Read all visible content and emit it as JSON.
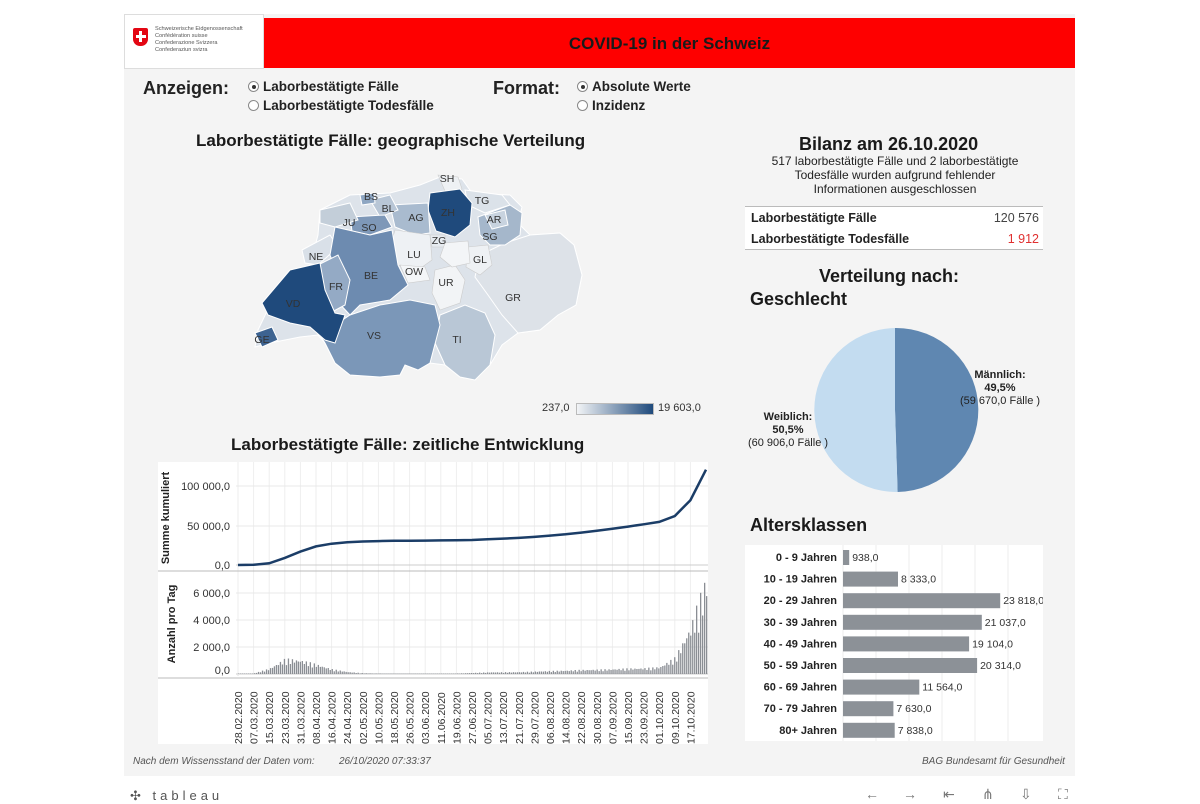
{
  "header": {
    "logo_lines": [
      "Schweizerische Eidgenossenschaft",
      "Confédération suisse",
      "Confederazione Svizzera",
      "Confederaziun svizra"
    ],
    "title": "COVID-19 in der Schweiz"
  },
  "controls": {
    "anzeigen_label": "Anzeigen:",
    "anzeigen_options": [
      {
        "label": "Laborbestätigte Fälle",
        "selected": true
      },
      {
        "label": "Laborbestätigte Todesfälle",
        "selected": false
      }
    ],
    "format_label": "Format:",
    "format_options": [
      {
        "label": "Absolute Werte",
        "selected": true
      },
      {
        "label": "Inzidenz",
        "selected": false
      }
    ]
  },
  "map": {
    "title": "Laborbestätigte Fälle: geographische Verteilung",
    "legend_min": "237,0",
    "legend_max": "19 603,0",
    "cantons": [
      "SH",
      "BS",
      "BL",
      "AG",
      "ZH",
      "TG",
      "JU",
      "SO",
      "AR",
      "SG",
      "ZG",
      "NE",
      "LU",
      "OW",
      "GL",
      "FR",
      "BE",
      "UR",
      "VD",
      "GR",
      "GE",
      "VS",
      "TI"
    ]
  },
  "bilanz": {
    "title": "Bilanz am 26.10.2020",
    "note_lines": [
      "517 laborbestätigte Fälle und 2 laborbestätigte",
      "Todesfälle wurden aufgrund fehlender",
      "Informationen ausgeschlossen"
    ],
    "rows": [
      {
        "label": "Laborbestätigte Fälle",
        "value": "120 576"
      },
      {
        "label": "Laborbestätigte Todesfälle",
        "value": "1 912"
      }
    ]
  },
  "gender": {
    "title_line1": "Verteilung nach:",
    "title_line2": "Geschlecht",
    "slices": [
      {
        "label": "Männlich:",
        "pct": "49,5%",
        "count": "(59 670,0 Fälle )",
        "value": 59670,
        "color": "#5f87b1"
      },
      {
        "label": "Weiblich:",
        "pct": "50,5%",
        "count": "(60 906,0 Fälle )",
        "value": 60906,
        "color": "#c3dcf0"
      }
    ]
  },
  "age": {
    "title": "Altersklassen",
    "classes": [
      "0 - 9 Jahren",
      "10 - 19 Jahren",
      "20 - 29 Jahren",
      "30 - 39 Jahren",
      "40 - 49 Jahren",
      "50 - 59 Jahren",
      "60 - 69 Jahren",
      "70 - 79 Jahren",
      "80+ Jahren"
    ],
    "labels": [
      "938,0",
      "8 333,0",
      "23 818,0",
      "21 037,0",
      "19 104,0",
      "20 314,0",
      "11 564,0",
      "7 630,0",
      "7 838,0"
    ]
  },
  "timeline": {
    "title": "Laborbestätigte Fälle: zeitliche Entwicklung",
    "cum_ylabel": "Summe kumuliert",
    "cum_ticks": [
      "0,0",
      "50 000,0",
      "100 000,0"
    ],
    "daily_ylabel": "Anzahl pro Tag",
    "daily_ticks": [
      "0,0",
      "2 000,0",
      "4 000,0",
      "6 000,0"
    ],
    "dates": [
      "28.02.2020",
      "07.03.2020",
      "15.03.2020",
      "23.03.2020",
      "31.03.2020",
      "08.04.2020",
      "16.04.2020",
      "24.04.2020",
      "02.05.2020",
      "10.05.2020",
      "18.05.2020",
      "26.05.2020",
      "03.06.2020",
      "11.06.2020",
      "19.06.2020",
      "27.06.2020",
      "05.07.2020",
      "13.07.2020",
      "21.07.2020",
      "29.07.2020",
      "06.08.2020",
      "14.08.2020",
      "22.08.2020",
      "30.08.2020",
      "07.09.2020",
      "15.09.2020",
      "23.09.2020",
      "01.10.2020",
      "09.10.2020",
      "17.10.2020"
    ]
  },
  "chart_data": [
    {
      "type": "line",
      "title": "Laborbestätigte Fälle: zeitliche Entwicklung",
      "ylabel": "Summe kumuliert",
      "ylim": [
        0,
        125000
      ],
      "x": [
        "28.02.2020",
        "07.03.2020",
        "15.03.2020",
        "23.03.2020",
        "31.03.2020",
        "08.04.2020",
        "16.04.2020",
        "24.04.2020",
        "02.05.2020",
        "10.05.2020",
        "18.05.2020",
        "26.05.2020",
        "03.06.2020",
        "11.06.2020",
        "19.06.2020",
        "27.06.2020",
        "05.07.2020",
        "13.07.2020",
        "21.07.2020",
        "29.07.2020",
        "06.08.2020",
        "14.08.2020",
        "22.08.2020",
        "30.08.2020",
        "07.09.2020",
        "15.09.2020",
        "23.09.2020",
        "01.10.2020",
        "09.10.2020",
        "17.10.2020",
        "26.10.2020"
      ],
      "values": [
        0,
        300,
        2200,
        9000,
        17000,
        23500,
        27000,
        28800,
        29800,
        30300,
        30600,
        30800,
        30900,
        31100,
        31300,
        31700,
        32500,
        33400,
        34300,
        35600,
        37200,
        38900,
        41000,
        43300,
        45900,
        48600,
        51500,
        54500,
        62000,
        82000,
        120576
      ]
    },
    {
      "type": "bar",
      "title": "Anzahl pro Tag",
      "ylabel": "Anzahl pro Tag",
      "ylim": [
        0,
        7500
      ],
      "x": [
        "28.02.2020",
        "07.03.2020",
        "15.03.2020",
        "23.03.2020",
        "31.03.2020",
        "08.04.2020",
        "16.04.2020",
        "24.04.2020",
        "02.05.2020",
        "10.05.2020",
        "18.05.2020",
        "26.05.2020",
        "03.06.2020",
        "11.06.2020",
        "19.06.2020",
        "27.06.2020",
        "05.07.2020",
        "13.07.2020",
        "21.07.2020",
        "29.07.2020",
        "06.08.2020",
        "14.08.2020",
        "22.08.2020",
        "30.08.2020",
        "07.09.2020",
        "15.09.2020",
        "23.09.2020",
        "01.10.2020",
        "09.10.2020",
        "17.10.2020",
        "26.10.2020"
      ],
      "values": [
        0,
        50,
        400,
        1100,
        1000,
        700,
        350,
        150,
        60,
        40,
        30,
        20,
        20,
        30,
        40,
        80,
        120,
        130,
        140,
        180,
        220,
        250,
        300,
        320,
        350,
        400,
        420,
        500,
        1200,
        3500,
        7000
      ]
    },
    {
      "type": "pie",
      "title": "Verteilung nach: Geschlecht",
      "categories": [
        "Männlich",
        "Weiblich"
      ],
      "values": [
        59670,
        60906
      ],
      "percent": [
        49.5,
        50.5
      ]
    },
    {
      "type": "bar",
      "title": "Altersklassen",
      "categories": [
        "0 - 9 Jahren",
        "10 - 19 Jahren",
        "20 - 29 Jahren",
        "30 - 39 Jahren",
        "40 - 49 Jahren",
        "50 - 59 Jahren",
        "60 - 69 Jahren",
        "70 - 79 Jahren",
        "80+ Jahren"
      ],
      "values": [
        938,
        8333,
        23818,
        21037,
        19104,
        20314,
        11564,
        7630,
        7838
      ],
      "xlim": [
        0,
        30000
      ]
    }
  ],
  "footer": {
    "left": "Nach dem Wissensstand der Daten vom:",
    "date": "26/10/2020 07:33:37",
    "right": "BAG Bundesamt für Gesundheit"
  },
  "tableau": {
    "logo": "tableau"
  },
  "colors": {
    "title_bg": "#fe0000",
    "map_dark": "#1f4a7c",
    "map_light": "#e3e9ef",
    "line": "#1b3d67",
    "bar_grey": "#8a8e94",
    "age_bar": "#8c9197",
    "deaths_red": "#e03030"
  }
}
